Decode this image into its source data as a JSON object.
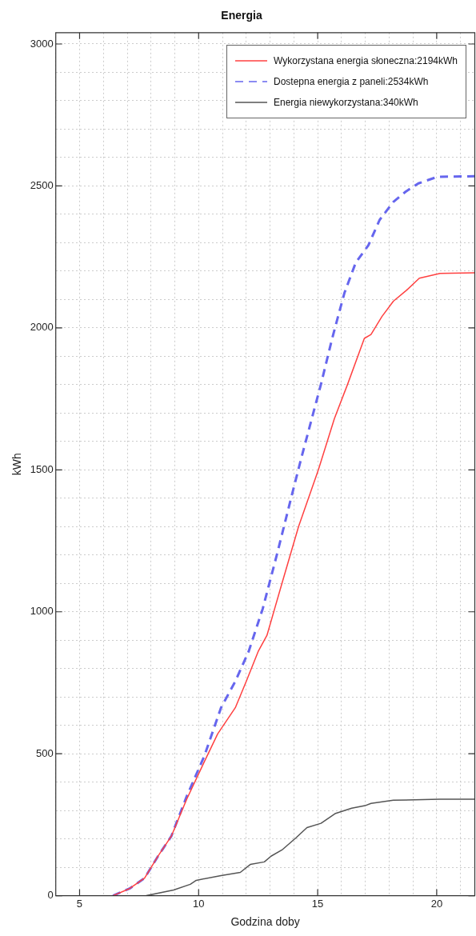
{
  "chart_data": {
    "type": "line",
    "title": "Energia",
    "xlabel": "Godzina doby",
    "ylabel": "kWh",
    "xlim": [
      4,
      21.6
    ],
    "ylim": [
      0,
      3040
    ],
    "xticks": [
      {
        "value": 4,
        "label": null
      },
      5,
      {
        "value": 6,
        "label": null
      },
      {
        "value": 7,
        "label": null
      },
      {
        "value": 8,
        "label": null
      },
      {
        "value": 9,
        "label": null
      },
      10,
      {
        "value": 11,
        "label": null
      },
      {
        "value": 12,
        "label": null
      },
      {
        "value": 13,
        "label": null
      },
      {
        "value": 14,
        "label": null
      },
      15,
      {
        "value": 16,
        "label": null
      },
      {
        "value": 17,
        "label": null
      },
      {
        "value": 18,
        "label": null
      },
      {
        "value": 19,
        "label": null
      },
      20,
      {
        "value": 21,
        "label": null
      }
    ],
    "yticks": [
      0,
      {
        "value": 100,
        "label": null
      },
      {
        "value": 200,
        "label": null
      },
      {
        "value": 300,
        "label": null
      },
      {
        "value": 400,
        "label": null
      },
      500,
      {
        "value": 600,
        "label": null
      },
      {
        "value": 700,
        "label": null
      },
      {
        "value": 800,
        "label": null
      },
      {
        "value": 900,
        "label": null
      },
      1000,
      {
        "value": 1100,
        "label": null
      },
      {
        "value": 1200,
        "label": null
      },
      {
        "value": 1300,
        "label": null
      },
      {
        "value": 1400,
        "label": null
      },
      1500,
      {
        "value": 1600,
        "label": null
      },
      {
        "value": 1700,
        "label": null
      },
      {
        "value": 1800,
        "label": null
      },
      {
        "value": 1900,
        "label": null
      },
      2000,
      {
        "value": 2100,
        "label": null
      },
      {
        "value": 2200,
        "label": null
      },
      {
        "value": 2300,
        "label": null
      },
      {
        "value": 2400,
        "label": null
      },
      2500,
      {
        "value": 2600,
        "label": null
      },
      {
        "value": 2700,
        "label": null
      },
      {
        "value": 2800,
        "label": null
      },
      {
        "value": 2900,
        "label": null
      },
      3000
    ],
    "grid": true,
    "legend": "top right",
    "marker": "none",
    "series": [
      {
        "name": "Wykorzystana energia słoneczna:2194kWh",
        "color": "#ff4040",
        "line_style": "solid",
        "x": [
          6.4,
          7.1,
          7.73,
          8.3,
          8.85,
          9.5,
          10.24,
          10.8,
          11.54,
          12,
          12.5,
          12.87,
          13.5,
          14.2,
          15.03,
          15.7,
          16.26,
          16.96,
          17.24,
          17.7,
          18.18,
          18.74,
          19.27,
          20.14,
          21.6
        ],
        "values": [
          0,
          25,
          62,
          140,
          209,
          340,
          472,
          570,
          662,
          755,
          860,
          917,
          1100,
          1301,
          1500,
          1680,
          1802,
          1963,
          1977,
          2040,
          2094,
          2133,
          2175,
          2192,
          2194
        ]
      },
      {
        "name": "Dostepna energia z paneli:2534kWh",
        "color": "#6666ee",
        "line_style": "dashed",
        "x": [
          6.4,
          7.1,
          7.73,
          8.3,
          8.85,
          9.5,
          10.24,
          10.94,
          11.54,
          12.1,
          12.69,
          13.28,
          13.9,
          14.33,
          15.14,
          15.6,
          16.12,
          16.6,
          17.13,
          17.6,
          18.18,
          18.7,
          19.23,
          20.03,
          21.6
        ],
        "values": [
          0,
          25,
          62,
          140,
          209,
          350,
          492,
          662,
          755,
          860,
          1010,
          1199,
          1406,
          1547,
          1802,
          1960,
          2122,
          2230,
          2291,
          2380,
          2444,
          2480,
          2509,
          2532,
          2534
        ]
      },
      {
        "name": "Energia niewykorzystana:340kWh",
        "color": "#555555",
        "line_style": "solid",
        "x": [
          7.8,
          8.95,
          9.65,
          9.9,
          10.94,
          11.75,
          12.17,
          12.76,
          13.04,
          13.5,
          14.09,
          14.55,
          15.14,
          15.73,
          16.43,
          16.99,
          17.24,
          18.18,
          20.14,
          21.6
        ],
        "values": [
          0,
          20,
          40,
          54,
          71,
          82,
          110,
          119,
          139,
          161,
          204,
          240,
          255,
          289,
          308,
          317,
          325,
          336,
          340,
          340
        ]
      }
    ]
  }
}
